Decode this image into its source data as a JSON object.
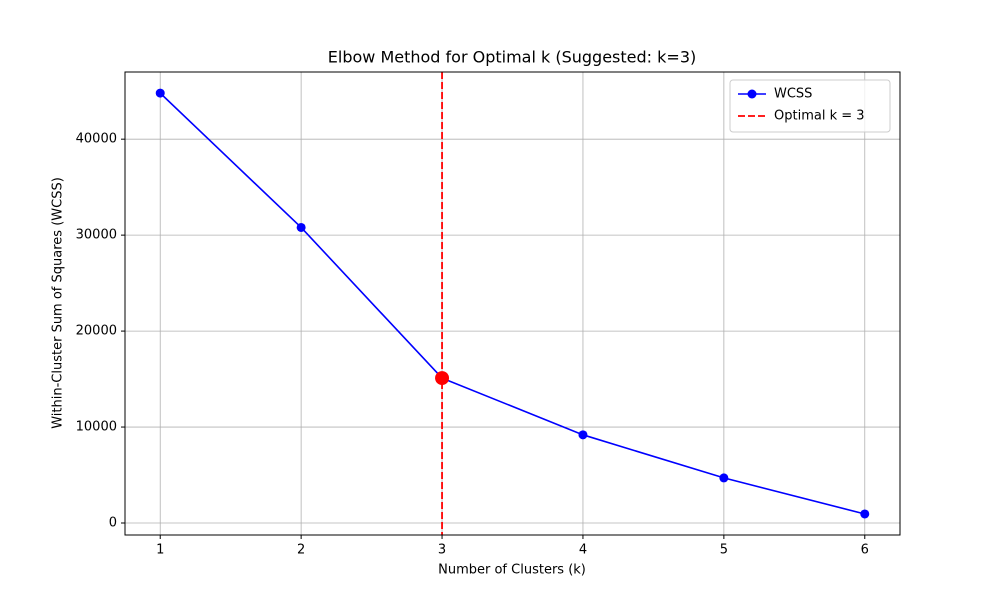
{
  "chart_data": {
    "type": "line",
    "title": "Elbow Method for Optimal k (Suggested: k=3)",
    "x_label": "Number of Clusters (k)",
    "y_label": "Within-Cluster Sum of Squares (WCSS)",
    "x": [
      1,
      2,
      3,
      4,
      5,
      6
    ],
    "series": [
      {
        "name": "WCSS",
        "color": "#0000ff",
        "values": [
          44800,
          30800,
          15100,
          9190,
          4700,
          940
        ]
      }
    ],
    "vline": {
      "name": "Optimal k = 3",
      "color": "#ff0000",
      "x": 3
    },
    "xlim": [
      0.75,
      6.25
    ],
    "ylim": [
      -1250,
      47000
    ],
    "xticks": [
      1,
      2,
      3,
      4,
      5,
      6
    ],
    "yticks": [
      0,
      10000,
      20000,
      30000,
      40000
    ],
    "grid": true,
    "legend": "upper right"
  }
}
